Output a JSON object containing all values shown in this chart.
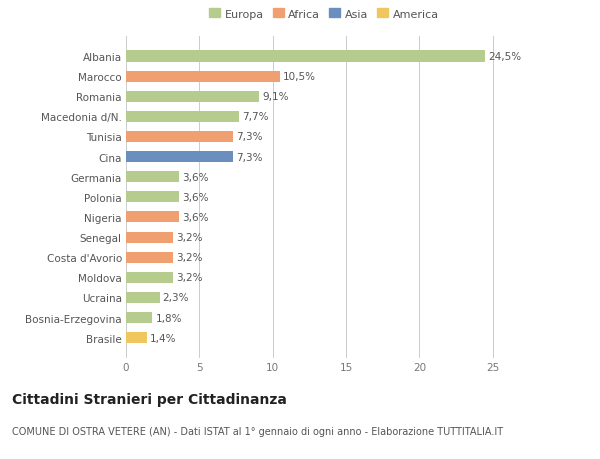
{
  "categories": [
    "Brasile",
    "Bosnia-Erzegovina",
    "Ucraina",
    "Moldova",
    "Costa d'Avorio",
    "Senegal",
    "Nigeria",
    "Polonia",
    "Germania",
    "Cina",
    "Tunisia",
    "Macedonia d/N.",
    "Romania",
    "Marocco",
    "Albania"
  ],
  "values": [
    1.4,
    1.8,
    2.3,
    3.2,
    3.2,
    3.2,
    3.6,
    3.6,
    3.6,
    7.3,
    7.3,
    7.7,
    9.1,
    10.5,
    24.5
  ],
  "labels": [
    "1,4%",
    "1,8%",
    "2,3%",
    "3,2%",
    "3,2%",
    "3,2%",
    "3,6%",
    "3,6%",
    "3,6%",
    "7,3%",
    "7,3%",
    "7,7%",
    "9,1%",
    "10,5%",
    "24,5%"
  ],
  "colors": [
    "#f0c75e",
    "#b5cc8e",
    "#b5cc8e",
    "#b5cc8e",
    "#f0a070",
    "#f0a070",
    "#f0a070",
    "#b5cc8e",
    "#b5cc8e",
    "#6a8fbf",
    "#f0a070",
    "#b5cc8e",
    "#b5cc8e",
    "#f0a070",
    "#b5cc8e"
  ],
  "continent_colors": {
    "Europa": "#b5cc8e",
    "Africa": "#f0a070",
    "Asia": "#6a8fbf",
    "America": "#f0c75e"
  },
  "title": "Cittadini Stranieri per Cittadinanza",
  "subtitle": "COMUNE DI OSTRA VETERE (AN) - Dati ISTAT al 1° gennaio di ogni anno - Elaborazione TUTTITALIA.IT",
  "xlim": [
    0,
    27
  ],
  "xticks": [
    0,
    5,
    10,
    15,
    20,
    25
  ],
  "background_color": "#ffffff",
  "bar_height": 0.55,
  "label_fontsize": 7.5,
  "title_fontsize": 10,
  "subtitle_fontsize": 7,
  "tick_fontsize": 7.5,
  "legend_fontsize": 8
}
